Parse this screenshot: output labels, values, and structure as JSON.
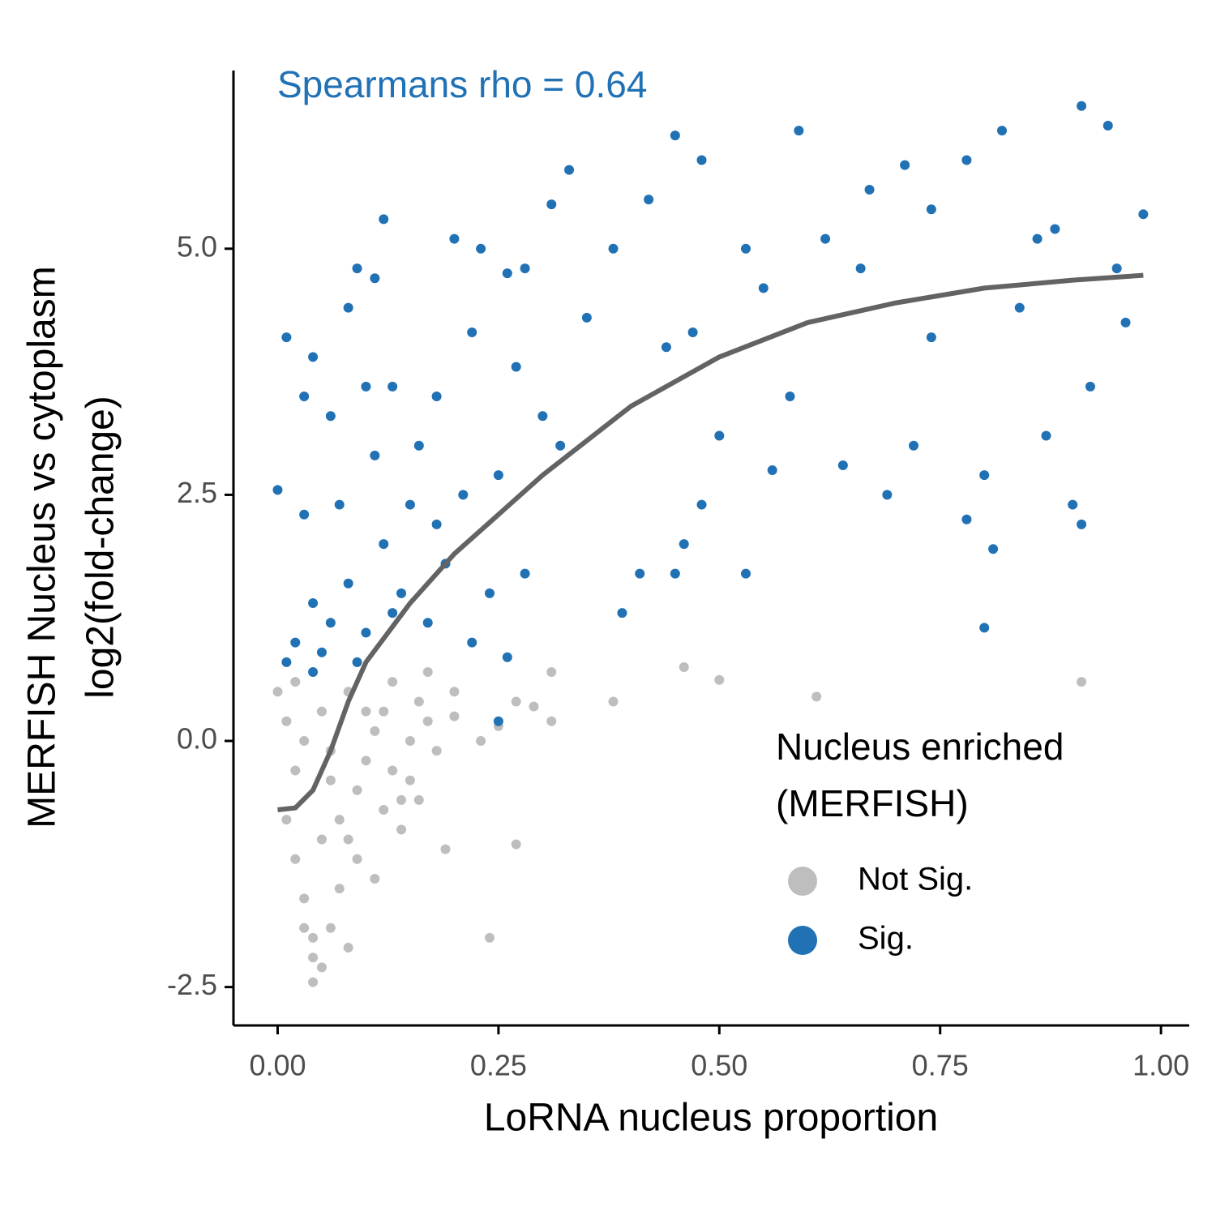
{
  "chart_data": {
    "type": "scatter",
    "annotation": "Spearmans rho = 0.64",
    "annotation_color": "#2171b5",
    "x_label": "LoRNA nucleus proportion",
    "y_label": [
      "MERFISH Nucleus vs cytoplasm",
      "log2(fold-change)"
    ],
    "legend_title": [
      "Nucleus enriched",
      "(MERFISH)"
    ],
    "xlim": [
      -0.05,
      1.032
    ],
    "ylim": [
      -2.89,
      6.81
    ],
    "xticks": [
      {
        "value": 0,
        "label": "0.00"
      },
      {
        "value": 0.25,
        "label": "0.25"
      },
      {
        "value": 0.5,
        "label": "0.50"
      },
      {
        "value": 0.75,
        "label": "0.75"
      },
      {
        "value": 1,
        "label": "1.00"
      }
    ],
    "yticks": [
      {
        "value": -2.5,
        "label": "-2.5"
      },
      {
        "value": 0,
        "label": "0.0"
      },
      {
        "value": 2.5,
        "label": "2.5"
      },
      {
        "value": 5,
        "label": "5.0"
      }
    ],
    "series": [
      {
        "name": "Not Sig.",
        "color": "#bebebe",
        "x": [
          0.0,
          0.01,
          0.02,
          0.01,
          0.02,
          0.03,
          0.04,
          0.04,
          0.05,
          0.04,
          0.06,
          0.07,
          0.08,
          0.09,
          0.1,
          0.11,
          0.12,
          0.13,
          0.14,
          0.15,
          0.16,
          0.17,
          0.18,
          0.2,
          0.23,
          0.25,
          0.27,
          0.29,
          0.31,
          0.31,
          0.38,
          0.46,
          0.5,
          0.61,
          0.91,
          0.19,
          0.27,
          0.24,
          0.14,
          0.11,
          0.06,
          0.03,
          0.05,
          0.08,
          0.02,
          0.07,
          0.09,
          0.05,
          0.03,
          0.06,
          0.1,
          0.12,
          0.08,
          0.15,
          0.13,
          0.17,
          0.2,
          0.16
        ],
        "values": [
          0.5,
          0.2,
          -0.3,
          -0.8,
          -1.2,
          -1.6,
          -2.0,
          -2.2,
          -2.3,
          -2.45,
          -1.9,
          -1.5,
          -1.0,
          -0.5,
          -0.2,
          0.1,
          0.3,
          -0.3,
          -0.6,
          0.0,
          0.4,
          0.2,
          -0.1,
          0.5,
          0.0,
          0.15,
          0.4,
          0.35,
          0.2,
          0.7,
          0.4,
          0.75,
          0.62,
          0.45,
          0.6,
          -1.1,
          -1.05,
          -2.0,
          -0.9,
          -1.4,
          -0.4,
          0.0,
          0.3,
          0.5,
          0.6,
          -0.8,
          -1.2,
          -1.0,
          -1.9,
          -0.1,
          0.3,
          -0.7,
          -2.1,
          -0.4,
          0.6,
          0.7,
          0.25,
          -0.6
        ]
      },
      {
        "name": "Sig.",
        "color": "#2171b5",
        "x": [
          0.0,
          0.01,
          0.03,
          0.04,
          0.06,
          0.08,
          0.09,
          0.11,
          0.12,
          0.1,
          0.13,
          0.18,
          0.2,
          0.23,
          0.22,
          0.26,
          0.28,
          0.33,
          0.31,
          0.35,
          0.38,
          0.42,
          0.45,
          0.48,
          0.53,
          0.59,
          0.62,
          0.67,
          0.71,
          0.74,
          0.78,
          0.82,
          0.86,
          0.88,
          0.91,
          0.94,
          0.98,
          0.96,
          0.92,
          0.87,
          0.8,
          0.78,
          0.9,
          0.91,
          0.81,
          0.8,
          0.72,
          0.69,
          0.64,
          0.56,
          0.58,
          0.48,
          0.46,
          0.45,
          0.53,
          0.41,
          0.39,
          0.5,
          0.47,
          0.44,
          0.55,
          0.66,
          0.74,
          0.84,
          0.95,
          0.3,
          0.27,
          0.32,
          0.25,
          0.21,
          0.18,
          0.15,
          0.12,
          0.08,
          0.06,
          0.04,
          0.02,
          0.05,
          0.1,
          0.14,
          0.17,
          0.22,
          0.26,
          0.28,
          0.24,
          0.19,
          0.07,
          0.03,
          0.11,
          0.16,
          0.13,
          0.09,
          0.01,
          0.04,
          0.25
        ],
        "values": [
          2.55,
          4.1,
          3.5,
          3.9,
          3.3,
          4.4,
          4.8,
          4.7,
          5.3,
          3.6,
          3.6,
          3.5,
          5.1,
          5.0,
          4.15,
          4.75,
          4.8,
          5.8,
          5.45,
          4.3,
          5.0,
          5.5,
          6.15,
          5.9,
          5.0,
          6.2,
          5.1,
          5.6,
          5.85,
          5.4,
          5.9,
          6.2,
          5.1,
          5.2,
          6.45,
          6.25,
          5.35,
          4.25,
          3.6,
          3.1,
          2.7,
          2.25,
          2.4,
          2.2,
          1.95,
          1.15,
          3.0,
          2.5,
          2.8,
          2.75,
          3.5,
          2.4,
          2.0,
          1.7,
          1.7,
          1.7,
          1.3,
          3.1,
          4.15,
          4.0,
          4.6,
          4.8,
          4.1,
          4.4,
          4.8,
          3.3,
          3.8,
          3.0,
          2.7,
          2.5,
          2.2,
          2.4,
          2.0,
          1.6,
          1.2,
          1.4,
          1.0,
          0.9,
          1.1,
          1.5,
          1.2,
          1.0,
          0.85,
          1.7,
          1.5,
          1.8,
          2.4,
          2.3,
          2.9,
          3.0,
          1.3,
          0.8,
          0.8,
          0.7,
          0.2
        ]
      }
    ],
    "trend": {
      "color": "#636363",
      "x": [
        0,
        0.02,
        0.04,
        0.06,
        0.08,
        0.1,
        0.15,
        0.2,
        0.25,
        0.3,
        0.35,
        0.4,
        0.5,
        0.6,
        0.7,
        0.8,
        0.9,
        0.98
      ],
      "values": [
        -0.7,
        -0.68,
        -0.5,
        -0.1,
        0.4,
        0.8,
        1.4,
        1.9,
        2.3,
        2.7,
        3.05,
        3.4,
        3.9,
        4.25,
        4.45,
        4.6,
        4.68,
        4.73
      ]
    }
  }
}
